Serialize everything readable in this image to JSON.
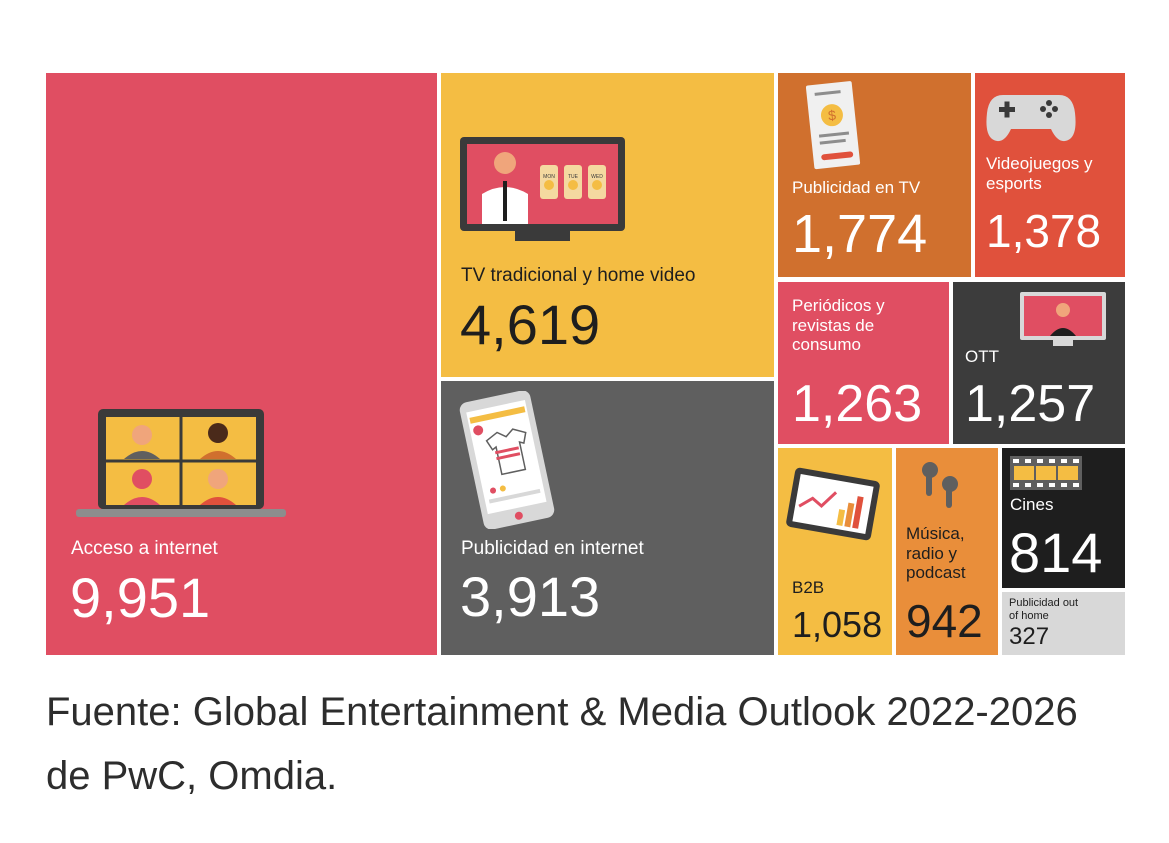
{
  "chart_data": {
    "type": "treemap",
    "title": "",
    "items": [
      {
        "label": "Acceso a internet",
        "value_text": "9,951",
        "value": 9951,
        "color": "#e04e62"
      },
      {
        "label": "TV tradicional y home video",
        "value_text": "4,619",
        "value": 4619,
        "color": "#f4bd43"
      },
      {
        "label": "Publicidad en internet",
        "value_text": "3,913",
        "value": 3913,
        "color": "#5f5f5f"
      },
      {
        "label": "Publicidad en TV",
        "value_text": "1,774",
        "value": 1774,
        "color": "#d0702e"
      },
      {
        "label": "Videojuegos y esports",
        "value_text": "1,378",
        "value": 1378,
        "color": "#e0513c"
      },
      {
        "label": "Periódicos y revistas de consumo",
        "value_text": "1,263",
        "value": 1263,
        "color": "#e04e62"
      },
      {
        "label": "OTT",
        "value_text": "1,257",
        "value": 1257,
        "color": "#3c3c3c"
      },
      {
        "label": "B2B",
        "value_text": "1,058",
        "value": 1058,
        "color": "#f4bd43"
      },
      {
        "label": "Música, radio y podcast",
        "value_text": "942",
        "value": 942,
        "color": "#e98e3a"
      },
      {
        "label": "Cines",
        "value_text": "814",
        "value": 814,
        "color": "#1e1e1e"
      },
      {
        "label": "Publicidad out of home",
        "value_text": "327",
        "value": 327,
        "color": "#d8d8d8"
      }
    ]
  },
  "weather_days": [
    "MON",
    "TUE",
    "WED"
  ],
  "source_text": "Fuente: Global Entertainment & Media Outlook 2022-2026 de PwC, Omdia."
}
